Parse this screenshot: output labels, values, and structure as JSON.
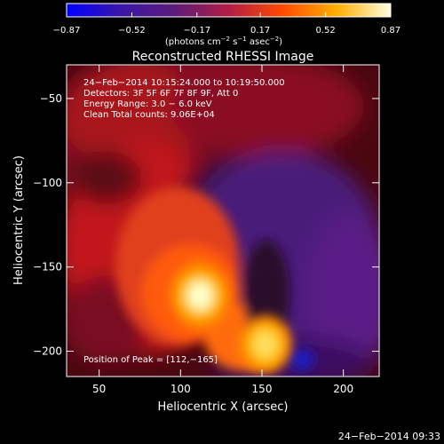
{
  "chart_data": {
    "type": "heatmap",
    "title": "Reconstructed RHESSI Image",
    "xlabel": "Heliocentric X (arcsec)",
    "ylabel": "Heliocentric Y (arcsec)",
    "xlim": [
      30,
      222
    ],
    "ylim": [
      -215,
      -30
    ],
    "x_ticks": [
      50,
      100,
      150,
      200
    ],
    "x_tick_labels": [
      "50",
      "100",
      "150",
      "200"
    ],
    "y_ticks": [
      -50,
      -100,
      -150,
      -200
    ],
    "y_tick_labels": [
      "−50",
      "−100",
      "−150",
      "−200"
    ],
    "colorbar": {
      "range": [
        -0.87,
        0.87
      ],
      "ticks": [
        -0.87,
        -0.52,
        -0.17,
        0.17,
        0.52,
        0.87
      ],
      "tick_labels": [
        "−0.87",
        "−0.52",
        "−0.17",
        "0.17",
        "0.52",
        "0.87"
      ],
      "units_prefix": "(photons cm",
      "units_exp1": "−2",
      "units_mid1": " s",
      "units_exp2": "−1",
      "units_mid2": " asec",
      "units_exp3": "−2",
      "units_suffix": ")",
      "colors": [
        "#0000ff",
        "#3a16a8",
        "#5c1c7a",
        "#b21d46",
        "#ff4a00",
        "#ffb000",
        "#ffffe0"
      ]
    },
    "annotations": [
      "24−Feb−2014 10:15:24.000 to 10:19:50.000",
      "Detectors: 3F 5F 6F 7F 8F 9F, Att 0",
      "Energy Range: 3.0 − 6.0 keV",
      "Clean      Total counts: 9.06E+04"
    ],
    "peak_label": "Position of Peak = [112,−165]",
    "peak": [
      112,
      -165
    ],
    "sources": [
      {
        "x": 112,
        "y": -167,
        "value": 0.87
      },
      {
        "x": 152,
        "y": -196,
        "value": 0.75
      }
    ]
  },
  "footer": {
    "timestamp": "24−Feb−2014 09:33"
  }
}
